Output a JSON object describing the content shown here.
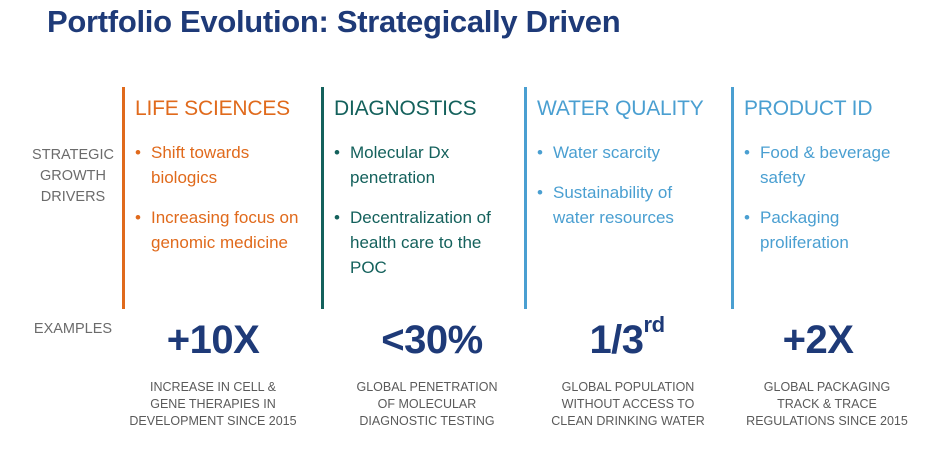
{
  "title": "Portfolio Evolution: Strategically Driven",
  "row_labels": {
    "drivers": [
      "STRATEGIC",
      "GROWTH",
      "DRIVERS"
    ],
    "examples": "EXAMPLES"
  },
  "colors": {
    "title": "#1e3a78",
    "life_sciences": "#e06a1c",
    "diagnostics": "#14615c",
    "water_quality": "#4a9fd1",
    "product_id": "#4a9fd1"
  },
  "columns": [
    {
      "heading": "LIFE SCIENCES",
      "bullets": [
        "Shift towards biologics",
        "Increasing focus on genomic medicine"
      ],
      "stat": "+10X",
      "caption": [
        "INCREASE IN CELL &",
        "GENE THERAPIES IN",
        "DEVELOPMENT SINCE 2015"
      ]
    },
    {
      "heading": "DIAGNOSTICS",
      "bullets": [
        "Molecular Dx penetration",
        "Decentralization of health care to the POC"
      ],
      "stat": "<30%",
      "caption": [
        "GLOBAL PENETRATION",
        "OF MOLECULAR",
        "DIAGNOSTIC TESTING"
      ]
    },
    {
      "heading": "WATER QUALITY",
      "bullets": [
        "Water scarcity",
        "Sustainability of water resources"
      ],
      "stat": "1/3",
      "stat_sup": "rd",
      "caption": [
        "GLOBAL POPULATION",
        "WITHOUT ACCESS TO",
        "CLEAN DRINKING WATER"
      ]
    },
    {
      "heading": "PRODUCT ID",
      "bullets": [
        "Food & beverage safety",
        "Packaging proliferation"
      ],
      "stat": "+2X",
      "caption": [
        "GLOBAL PACKAGING",
        "TRACK & TRACE",
        "REGULATIONS SINCE 2015"
      ]
    }
  ]
}
